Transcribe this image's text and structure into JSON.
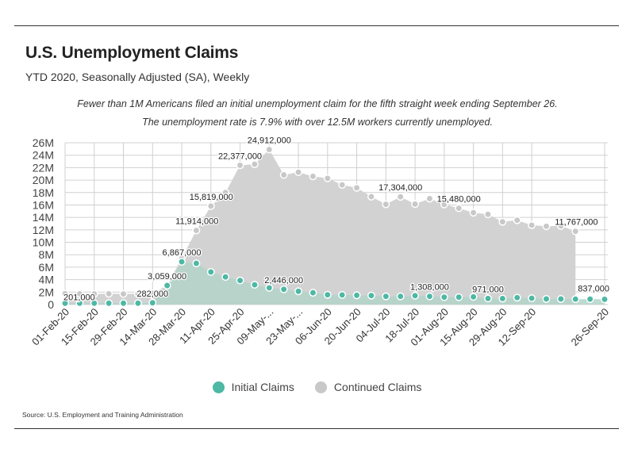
{
  "header": {
    "title": "U.S. Unemployment Claims",
    "subtitle": "YTD 2020, Seasonally Adjusted (SA), Weekly"
  },
  "annotation": {
    "line1": "Fewer than 1M Americans filed an initial unemployment claim  for the fifth straight week ending September 26.",
    "line2": "The unemployment rate is 7.9% with over 12.5M workers currently unemployed."
  },
  "legend": {
    "initial_label": "Initial Claims",
    "continued_label": "Continued Claims"
  },
  "source": "Source: U.S. Employment and Training Administration",
  "colors": {
    "initial": "#4db8a4",
    "initial_fill": "#b3d4c9",
    "continued": "#c8c8c8",
    "continued_fill": "#d2d2d2",
    "grid": "#d0d0d0",
    "rule": "#333333"
  },
  "chart_data": {
    "type": "area",
    "y_ticks": [
      "0",
      "2M",
      "4M",
      "6M",
      "8M",
      "10M",
      "12M",
      "14M",
      "16M",
      "18M",
      "20M",
      "22M",
      "24M",
      "26M"
    ],
    "ylim": [
      0,
      26000000
    ],
    "x_tick_labels": [
      "01-Feb-20",
      "15-Feb-20",
      "29-Feb-20",
      "14-Mar-20",
      "28-Mar-20",
      "11-Apr-20",
      "25-Apr-20",
      "09-May-...",
      "23-May-...",
      "06-Jun-20",
      "20-Jun-20",
      "04-Jul-20",
      "18-Jul-20",
      "01-Aug-20",
      "15-Aug-20",
      "29-Aug-20",
      "12-Sep-20",
      "26-Sep-20"
    ],
    "grid": true,
    "legend_position": "bottom",
    "series": [
      {
        "name": "Initial Claims",
        "values": [
          201000,
          210000,
          214000,
          218000,
          216000,
          211000,
          282000,
          3059000,
          6867000,
          6615000,
          5237000,
          4442000,
          3867000,
          3176000,
          2687000,
          2446000,
          2126000,
          1897000,
          1566000,
          1540000,
          1482000,
          1435000,
          1310000,
          1307000,
          1422000,
          1308000,
          1192000,
          1186000,
          1238000,
          971000,
          963000,
          1104000,
          1011000,
          893000,
          893000,
          866000,
          873000,
          837000
        ]
      },
      {
        "name": "Continued Claims",
        "values": [
          1750000,
          1720000,
          1710000,
          1730000,
          1700000,
          1730000,
          1785000,
          3059000,
          7446000,
          11914000,
          15819000,
          17992000,
          22377000,
          22548000,
          24912000,
          20838000,
          21268000,
          20606000,
          20289000,
          19231000,
          18760000,
          17338000,
          16107000,
          17304000,
          16151000,
          17018000,
          16090000,
          15480000,
          14759000,
          14492000,
          13292000,
          13544000,
          12747000,
          12580000,
          12628000,
          11767000,
          null,
          null
        ]
      }
    ],
    "data_labels": [
      {
        "series": "Initial Claims",
        "index": 0,
        "text": "201,000"
      },
      {
        "series": "Initial Claims",
        "index": 6,
        "text": "282,000"
      },
      {
        "series": "Initial Claims",
        "index": 7,
        "text": "3,059,000"
      },
      {
        "series": "Initial Claims",
        "index": 8,
        "text": "6,867,000"
      },
      {
        "series": "Continued Claims",
        "index": 9,
        "text": "11,914,000"
      },
      {
        "series": "Continued Claims",
        "index": 10,
        "text": "15,819,000"
      },
      {
        "series": "Continued Claims",
        "index": 12,
        "text": "22,377,000"
      },
      {
        "series": "Continued Claims",
        "index": 14,
        "text": "24,912,000"
      },
      {
        "series": "Initial Claims",
        "index": 15,
        "text": "2,446,000"
      },
      {
        "series": "Continued Claims",
        "index": 23,
        "text": "17,304,000"
      },
      {
        "series": "Initial Claims",
        "index": 25,
        "text": "1,308,000"
      },
      {
        "series": "Continued Claims",
        "index": 27,
        "text": "15,480,000"
      },
      {
        "series": "Initial Claims",
        "index": 29,
        "text": "971,000"
      },
      {
        "series": "Continued Claims",
        "index": 35,
        "text": "11,767,000"
      },
      {
        "series": "Initial Claims",
        "index": 37,
        "text": "837,000"
      }
    ]
  }
}
